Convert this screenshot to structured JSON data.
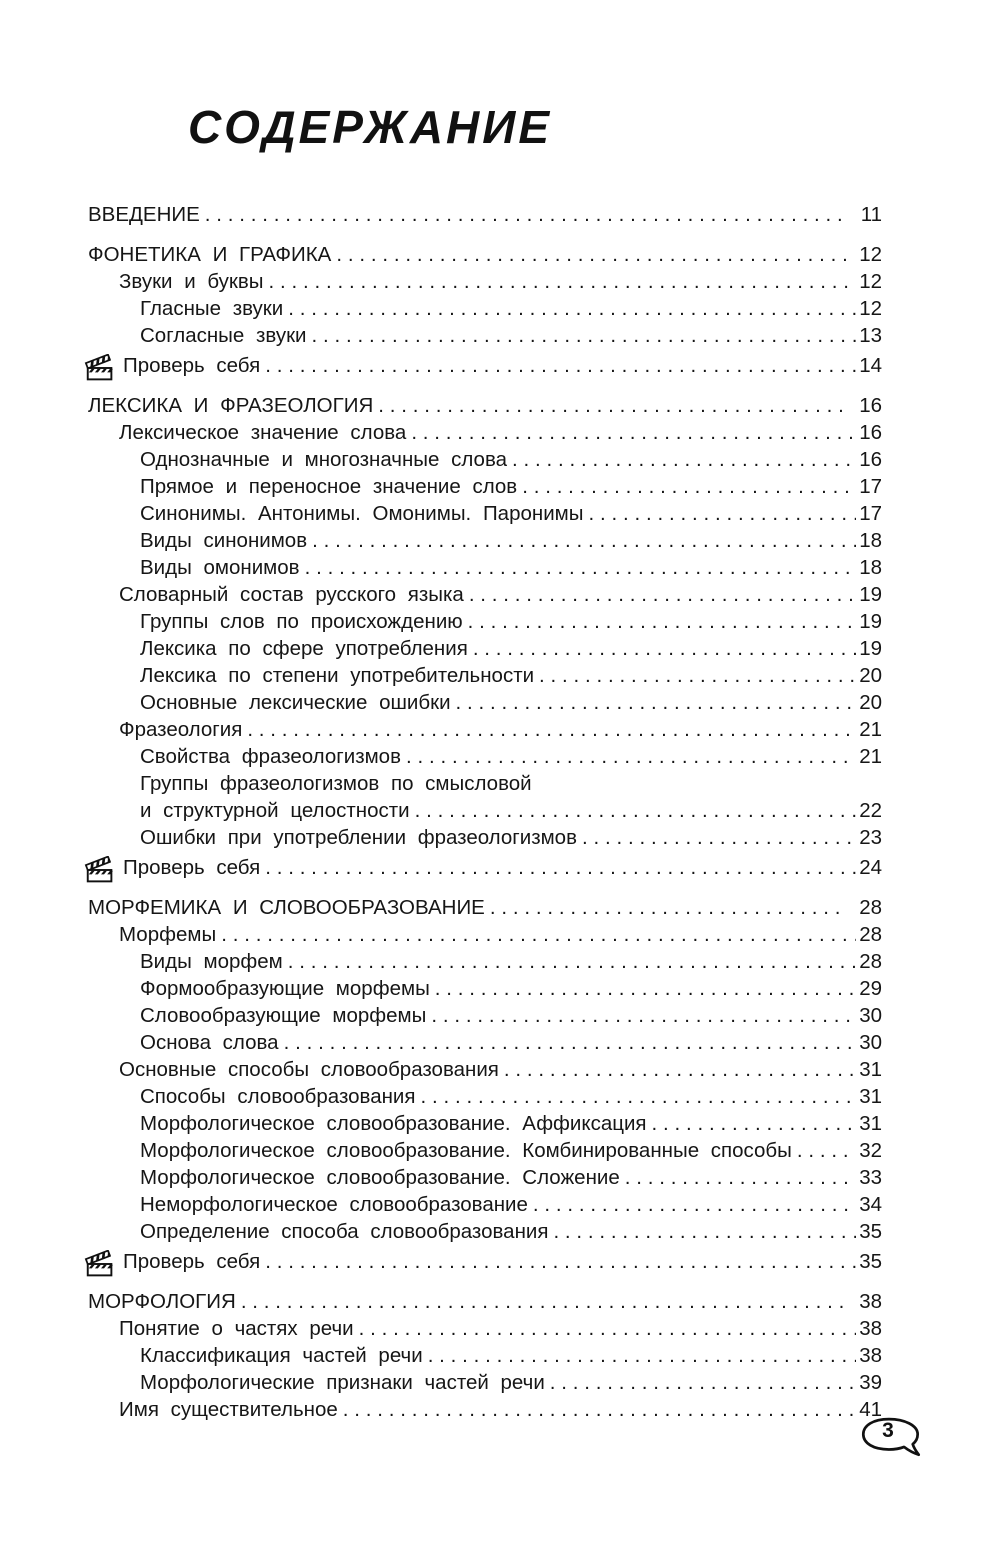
{
  "header": {
    "title": "СОДЕРЖАНИЕ"
  },
  "footer": {
    "page_number": "3"
  },
  "colors": {
    "text": "#161616",
    "background": "#ffffff"
  },
  "icons": {
    "check_yourself": "clapperboard-icon"
  },
  "toc": {
    "entries": [
      {
        "label": "ВВЕДЕНИЕ",
        "page": "11",
        "level": 0,
        "section": true
      },
      {
        "label": "ФОНЕТИКА И ГРАФИКА",
        "page": "12",
        "level": 0,
        "section": true
      },
      {
        "label": "Звуки и буквы",
        "page": "12",
        "level": 1
      },
      {
        "label": "Гласные звуки",
        "page": "12",
        "level": 2
      },
      {
        "label": "Согласные звуки",
        "page": "13",
        "level": 2
      },
      {
        "label": "Проверь себя",
        "page": "14",
        "level": 0,
        "icon": "clapperboard"
      },
      {
        "label": "ЛЕКСИКА И ФРАЗЕОЛОГИЯ",
        "page": "16",
        "level": 0,
        "section": true
      },
      {
        "label": "Лексическое значение слова",
        "page": "16",
        "level": 1
      },
      {
        "label": "Однозначные и многозначные слова",
        "page": "16",
        "level": 2
      },
      {
        "label": "Прямое и переносное значение слов",
        "page": "17",
        "level": 2
      },
      {
        "label": "Синонимы. Антонимы. Омонимы. Паронимы",
        "page": "17",
        "level": 2
      },
      {
        "label": "Виды синонимов",
        "page": "18",
        "level": 2
      },
      {
        "label": "Виды омонимов",
        "page": "18",
        "level": 2
      },
      {
        "label": "Словарный состав русского языка",
        "page": "19",
        "level": 1
      },
      {
        "label": "Группы слов по происхождению",
        "page": "19",
        "level": 2
      },
      {
        "label": "Лексика по сфере употребления",
        "page": "19",
        "level": 2
      },
      {
        "label": "Лексика по степени употребительности",
        "page": "20",
        "level": 2
      },
      {
        "label": "Основные лексические ошибки",
        "page": "20",
        "level": 2
      },
      {
        "label": "Фразеология",
        "page": "21",
        "level": 1
      },
      {
        "label": "Свойства фразеологизмов",
        "page": "21",
        "level": 2
      },
      {
        "label": "Группы фразеологизмов по смысловой",
        "page": "",
        "level": 2,
        "continuation": true
      },
      {
        "label": "и структурной целостности",
        "page": "22",
        "level": 2
      },
      {
        "label": "Ошибки при употреблении фразеологизмов",
        "page": "23",
        "level": 2
      },
      {
        "label": "Проверь себя",
        "page": "24",
        "level": 0,
        "icon": "clapperboard"
      },
      {
        "label": "МОРФЕМИКА И СЛОВООБРАЗОВАНИЕ",
        "page": "28",
        "level": 0,
        "section": true
      },
      {
        "label": "Морфемы",
        "page": "28",
        "level": 1
      },
      {
        "label": "Виды морфем",
        "page": "28",
        "level": 2
      },
      {
        "label": "Формообразующие морфемы",
        "page": "29",
        "level": 2
      },
      {
        "label": "Словообразующие морфемы",
        "page": "30",
        "level": 2
      },
      {
        "label": "Основа слова",
        "page": "30",
        "level": 2
      },
      {
        "label": "Основные способы словообразования",
        "page": "31",
        "level": 1
      },
      {
        "label": "Способы словообразования",
        "page": "31",
        "level": 2
      },
      {
        "label": "Морфологическое словообразование. Аффиксация",
        "page": "31",
        "level": 2
      },
      {
        "label": "Морфологическое словообразование. Комбинированные способы",
        "page": "32",
        "level": 2
      },
      {
        "label": "Морфологическое словообразование. Сложение",
        "page": "33",
        "level": 2
      },
      {
        "label": "Неморфологическое словообразование",
        "page": "34",
        "level": 2
      },
      {
        "label": "Определение способа словообразования",
        "page": "35",
        "level": 2
      },
      {
        "label": "Проверь себя",
        "page": "35",
        "level": 0,
        "icon": "clapperboard"
      },
      {
        "label": "МОРФОЛОГИЯ",
        "page": "38",
        "level": 0,
        "section": true
      },
      {
        "label": "Понятие о частях речи",
        "page": "38",
        "level": 1
      },
      {
        "label": "Классификация частей речи",
        "page": "38",
        "level": 2
      },
      {
        "label": "Морфологические признаки частей речи",
        "page": "39",
        "level": 2
      },
      {
        "label": "Имя существительное",
        "page": "41",
        "level": 1
      }
    ]
  }
}
